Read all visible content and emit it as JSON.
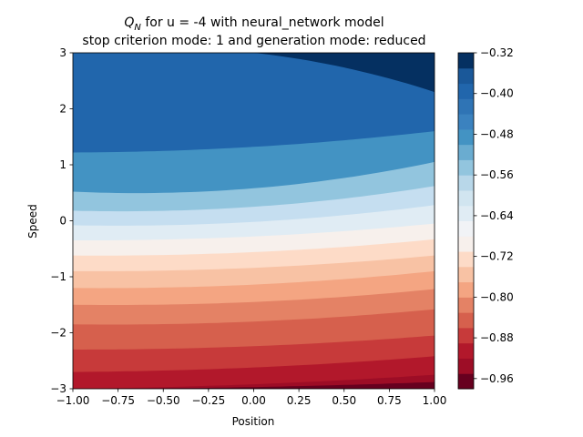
{
  "chart_data": {
    "type": "heatmap",
    "title_line1_main": "Q",
    "title_line1_sub": "N",
    "title_line1_rest": " for u = -4 with neural_network model",
    "title_line2": "stop criterion mode: 1 and generation mode: reduced",
    "xlabel": "Position",
    "ylabel": "Speed",
    "xlim": [
      -1.0,
      1.0
    ],
    "ylim": [
      -3,
      3
    ],
    "x_ticks": [
      -1.0,
      -0.75,
      -0.5,
      -0.25,
      0.0,
      0.25,
      0.5,
      0.75,
      1.0
    ],
    "x_tick_labels": [
      "−1.00",
      "−0.75",
      "−0.50",
      "−0.25",
      "0.00",
      "0.25",
      "0.50",
      "0.75",
      "1.00"
    ],
    "y_ticks": [
      -3,
      -2,
      -1,
      0,
      1,
      2,
      3
    ],
    "y_tick_labels": [
      "−3",
      "−2",
      "−1",
      "0",
      "1",
      "2",
      "3"
    ],
    "colorbar": {
      "levels": [
        -0.98,
        -0.96,
        -0.94,
        -0.92,
        -0.9,
        -0.88,
        -0.86,
        -0.84,
        -0.82,
        -0.8,
        -0.78,
        -0.76,
        -0.74,
        -0.72,
        -0.7,
        -0.68,
        -0.66,
        -0.64,
        -0.62,
        -0.6,
        -0.58,
        -0.56,
        -0.54,
        -0.52,
        -0.5,
        -0.48,
        -0.46,
        -0.44,
        -0.42,
        -0.4,
        -0.38,
        -0.36,
        -0.34,
        -0.32
      ],
      "band_step_note": "",
      "tick_values": [
        -0.96,
        -0.88,
        -0.8,
        -0.72,
        -0.64,
        -0.56,
        -0.48,
        -0.4,
        -0.32
      ],
      "tick_labels": [
        "−0.96",
        "−0.88",
        "−0.80",
        "−0.72",
        "−0.64",
        "−0.56",
        "−0.48",
        "−0.40",
        "−0.32"
      ],
      "band_colors": [
        "#67001f",
        "#9d0d26",
        "#b2182b",
        "#c73a3a",
        "#d6604d",
        "#e48265",
        "#f4a582",
        "#f8c2a4",
        "#fddbc7",
        "#f7f0ec",
        "#f1f3f6",
        "#e0ecf4",
        "#d1e5f0",
        "#b8d7e9",
        "#92c5de",
        "#6aacd0",
        "#4393c3",
        "#3b82bf",
        "#2f74b5",
        "#2166ac",
        "#1a5899",
        "#053061"
      ]
    },
    "band_boundaries_speed": [
      [
        -3.0,
        -2.92,
        -2.75
      ],
      [
        -2.7,
        -2.62,
        -2.42
      ],
      [
        -2.3,
        -2.24,
        -2.05
      ],
      [
        -1.85,
        -1.8,
        -1.58
      ],
      [
        -1.5,
        -1.45,
        -1.22
      ],
      [
        -1.2,
        -1.14,
        -0.9
      ],
      [
        -0.9,
        -0.84,
        -0.62
      ],
      [
        -0.62,
        -0.56,
        -0.33
      ],
      [
        -0.35,
        -0.28,
        -0.05
      ],
      [
        -0.08,
        -0.02,
        0.28
      ],
      [
        0.18,
        0.25,
        0.62
      ],
      [
        0.52,
        0.58,
        1.05
      ],
      [
        1.22,
        1.32,
        1.6
      ],
      [
        3.0,
        3.0,
        2.3
      ]
    ]
  }
}
